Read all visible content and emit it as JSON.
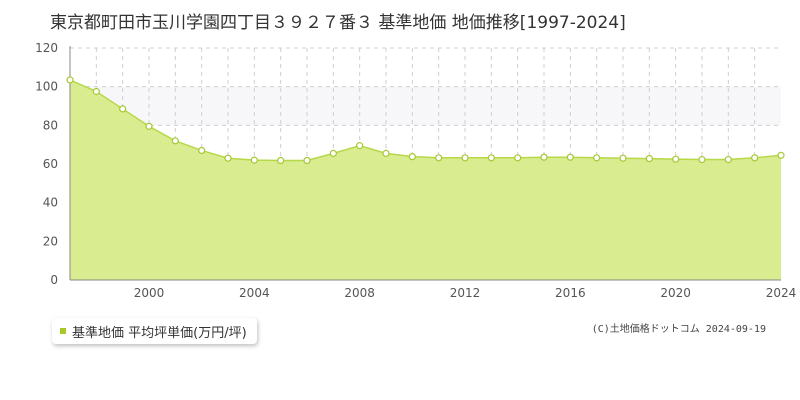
{
  "title": "東京都町田市玉川学園四丁目３９２７番３ 基準地価 地価推移[1997-2024]",
  "legend_label": "基準地価 平均坪単価(万円/坪)",
  "copyright": "(C)土地価格ドットコム 2024-09-19",
  "colors": {
    "fill": "#d9ec8f",
    "line": "#b6d84a",
    "marker_stroke": "#a5c832",
    "band": "#f7f6f9",
    "grid": "#cfcfcf"
  },
  "chart_data": {
    "type": "area",
    "title": "東京都町田市玉川学園四丁目３９２７番３ 基準地価 地価推移[1997-2024]",
    "xlabel": "",
    "ylabel": "",
    "xlim": [
      1997,
      2024
    ],
    "ylim": [
      0,
      120
    ],
    "x_ticks": [
      2000,
      2004,
      2008,
      2012,
      2016,
      2020,
      2024
    ],
    "y_ticks": [
      0,
      20,
      40,
      60,
      80,
      100,
      120
    ],
    "shaded_band": [
      80,
      100
    ],
    "grid": true,
    "series": [
      {
        "name": "基準地価 平均坪単価(万円/坪)",
        "x": [
          1997,
          1998,
          1999,
          2000,
          2001,
          2002,
          2003,
          2004,
          2005,
          2006,
          2007,
          2008,
          2009,
          2010,
          2011,
          2012,
          2013,
          2014,
          2015,
          2016,
          2017,
          2018,
          2019,
          2020,
          2021,
          2022,
          2023,
          2024
        ],
        "values": [
          103.5,
          97.5,
          88.5,
          79.5,
          72.0,
          67.0,
          63.0,
          62.0,
          61.8,
          61.8,
          65.5,
          69.5,
          65.5,
          63.8,
          63.2,
          63.2,
          63.2,
          63.2,
          63.5,
          63.5,
          63.2,
          63.0,
          62.8,
          62.5,
          62.3,
          62.3,
          63.2,
          64.5
        ]
      }
    ]
  }
}
